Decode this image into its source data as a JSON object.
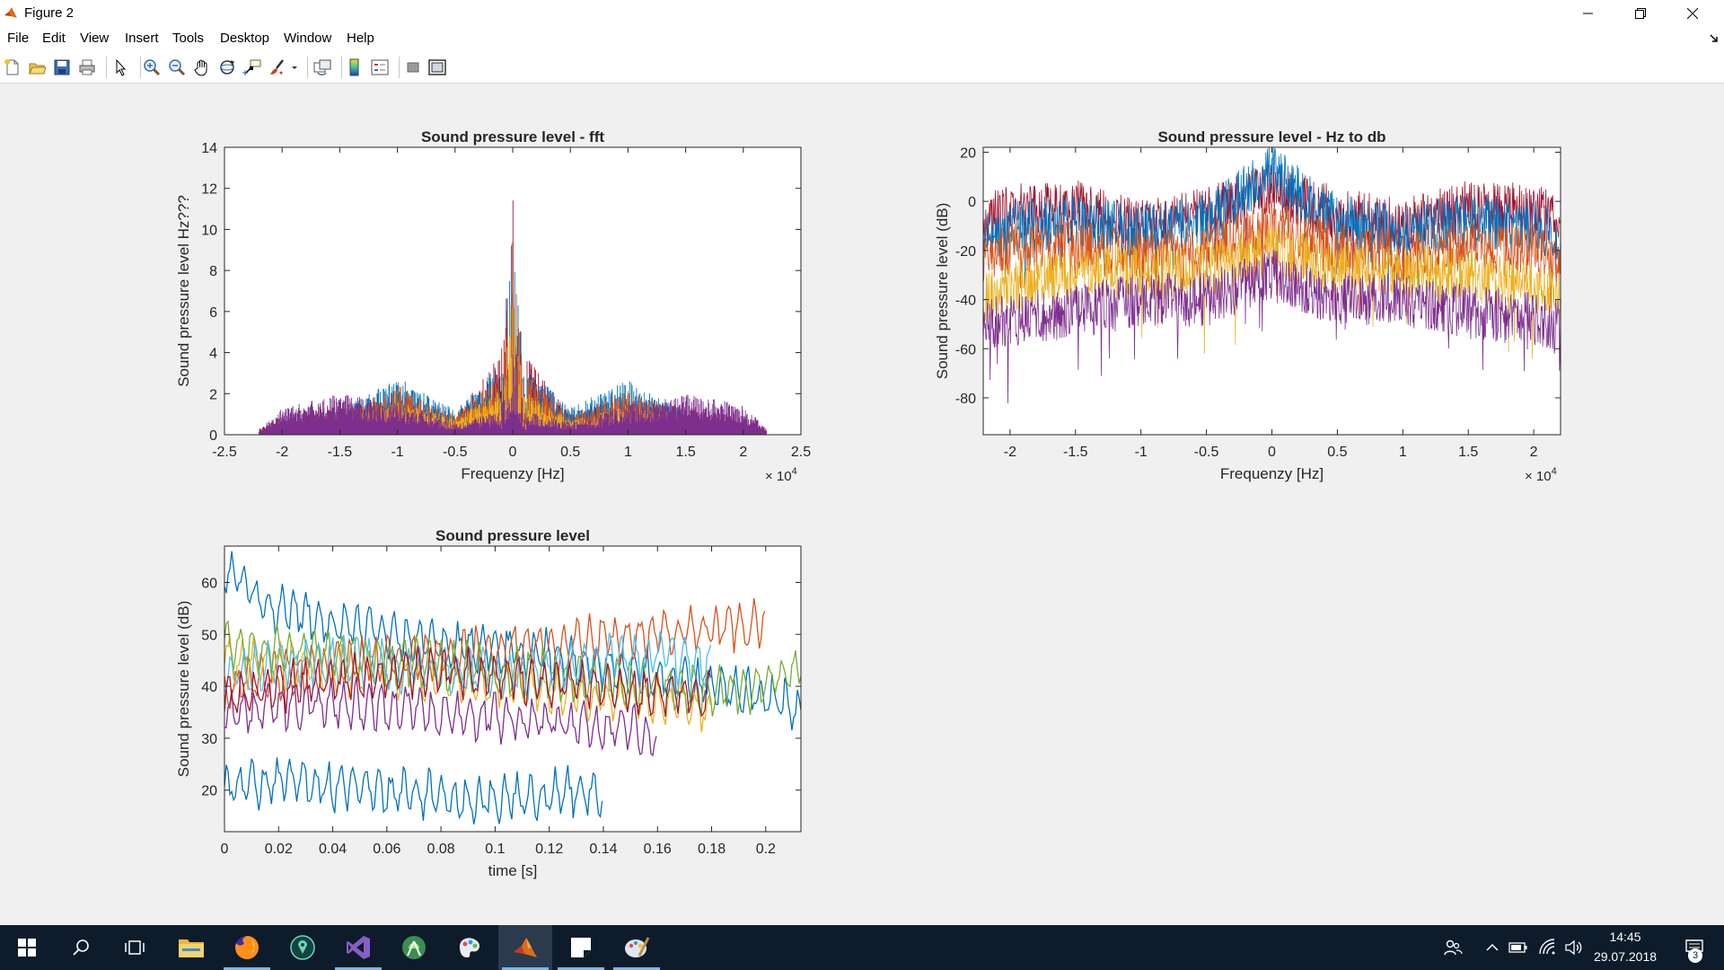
{
  "window": {
    "title": "Figure 2"
  },
  "menu": [
    "File",
    "Edit",
    "View",
    "Insert",
    "Tools",
    "Desktop",
    "Window",
    "Help"
  ],
  "toolbar": [
    "new-figure-icon",
    "open-file-icon",
    "save-icon",
    "print-icon",
    "select-arrow-icon",
    "zoom-in-icon",
    "zoom-out-icon",
    "pan-hand-icon",
    "rotate-3d-icon",
    "data-cursor-icon",
    "brush-icon",
    "brush-dropdown-icon",
    "link-plot-icon",
    "insert-colorbar-icon",
    "insert-legend-icon",
    "hide-plot-tools-icon",
    "show-plot-tools-icon"
  ],
  "colors": {
    "series": [
      "#0072bd",
      "#d95319",
      "#edb120",
      "#7e2f8e",
      "#77ac30",
      "#4dbeee",
      "#a2142f"
    ]
  },
  "axes": [
    {
      "id": "fft",
      "title": "Sound pressure level - fft",
      "xlabel": "Frequenzy [Hz]",
      "ylabel": "Sound pressure level Hz???",
      "xticks": [
        "-2.5",
        "-2",
        "-1.5",
        "-1",
        "-0.5",
        "0",
        "0.5",
        "1",
        "1.5",
        "2",
        "2.5"
      ],
      "yticks": [
        "0",
        "2",
        "4",
        "6",
        "8",
        "10",
        "12",
        "14"
      ],
      "exponent_base": "× 10",
      "exponent_power": "4"
    },
    {
      "id": "db",
      "title": "Sound pressure level - Hz to db",
      "xlabel": "Frequenzy [Hz]",
      "ylabel": "Sound pressure level (dB)",
      "xticks": [
        "-2",
        "-1.5",
        "-1",
        "-0.5",
        "0",
        "0.5",
        "1",
        "1.5",
        "2"
      ],
      "yticks": [
        "20",
        "0",
        "-20",
        "-40",
        "-60",
        "-80"
      ],
      "exponent_base": "× 10",
      "exponent_power": "4"
    },
    {
      "id": "time",
      "title": "Sound pressure level",
      "xlabel": "time [s]",
      "ylabel": "Sound pressure level (dB)",
      "xticks": [
        "0",
        "0.02",
        "0.04",
        "0.06",
        "0.08",
        "0.1",
        "0.12",
        "0.14",
        "0.16",
        "0.18",
        "0.2"
      ],
      "yticks": [
        "60",
        "50",
        "40",
        "30",
        "20"
      ]
    }
  ],
  "chart_data": [
    {
      "type": "line",
      "title": "Sound pressure level - fft",
      "xlabel": "Frequenzy [Hz]",
      "ylabel": "Sound pressure level Hz???",
      "xlim": [
        -25000,
        25000
      ],
      "ylim": [
        0,
        14
      ],
      "x_exponent": 4,
      "x": [
        -22000,
        -20000,
        -15000,
        -10000,
        -5000,
        -1000,
        0,
        1000,
        5000,
        10000,
        15000,
        20000,
        22000
      ],
      "series": [
        {
          "values": [
            0.3,
            0.9,
            1.5,
            1.8,
            0.9,
            4.0,
            12.3,
            4.0,
            1.0,
            1.9,
            1.4,
            0.9,
            0.3
          ]
        },
        {
          "values": [
            0.2,
            0.7,
            1.2,
            2.8,
            1.2,
            3.5,
            11.5,
            3.5,
            1.3,
            2.7,
            1.1,
            0.6,
            0.2
          ]
        },
        {
          "values": [
            0.2,
            0.6,
            1.1,
            2.4,
            1.0,
            3.0,
            10.0,
            3.0,
            1.0,
            2.2,
            0.9,
            0.5,
            0.2
          ]
        },
        {
          "values": [
            0.1,
            0.4,
            0.8,
            1.6,
            0.8,
            2.2,
            8.0,
            2.2,
            0.7,
            1.5,
            0.7,
            0.4,
            0.1
          ]
        },
        {
          "values": [
            0.2,
            1.3,
            2.0,
            1.6,
            0.6,
            1.2,
            5.5,
            1.2,
            0.6,
            1.5,
            2.0,
            1.5,
            0.3
          ]
        }
      ]
    },
    {
      "type": "line",
      "title": "Sound pressure level - Hz to db",
      "xlabel": "Frequenzy [Hz]",
      "ylabel": "Sound pressure level (dB)",
      "xlim": [
        -22050,
        22050
      ],
      "ylim": [
        -95,
        22
      ],
      "x_exponent": 4,
      "x": [
        -22050,
        -20000,
        -15000,
        -10000,
        -5000,
        0,
        5000,
        10000,
        15000,
        20000,
        22050
      ],
      "series": [
        {
          "values": [
            -8,
            -4,
            -2,
            -10,
            -5,
            5,
            -5,
            -10,
            -2,
            -4,
            -8
          ]
        },
        {
          "values": [
            -15,
            -10,
            -8,
            -12,
            -8,
            12,
            -8,
            -12,
            -8,
            -10,
            -15
          ]
        },
        {
          "values": [
            -25,
            -20,
            -18,
            -22,
            -20,
            -10,
            -20,
            -22,
            -18,
            -20,
            -25
          ]
        },
        {
          "values": [
            -40,
            -35,
            -30,
            -28,
            -28,
            -20,
            -28,
            -28,
            -30,
            -35,
            -40
          ]
        },
        {
          "values": [
            -50,
            -48,
            -45,
            -40,
            -40,
            -30,
            -40,
            -40,
            -45,
            -48,
            -50
          ]
        }
      ]
    },
    {
      "type": "line",
      "title": "Sound pressure level",
      "xlabel": "time [s]",
      "ylabel": "Sound pressure level (dB)",
      "xlim": [
        0,
        0.213
      ],
      "ylim": [
        12,
        67
      ],
      "x": [
        0,
        0.02,
        0.04,
        0.06,
        0.08,
        0.1,
        0.12,
        0.14,
        0.16,
        0.18,
        0.2,
        0.213
      ],
      "series": [
        {
          "values": [
            62,
            55,
            52,
            50,
            48,
            47,
            46,
            44,
            42,
            40,
            38,
            36
          ]
        },
        {
          "values": [
            40,
            42,
            44,
            45,
            46,
            47,
            48,
            49,
            50,
            51,
            52,
            null
          ]
        },
        {
          "values": [
            45,
            44,
            43,
            42,
            41,
            40,
            39,
            38,
            37,
            35,
            null,
            null
          ]
        },
        {
          "values": [
            35,
            36,
            37,
            36,
            35,
            34,
            33,
            32,
            31,
            null,
            null,
            null
          ]
        },
        {
          "values": [
            48,
            47,
            46,
            45,
            44,
            43,
            42,
            41,
            40,
            39,
            40,
            44
          ]
        },
        {
          "values": [
            42,
            44,
            45,
            44,
            43,
            42,
            43,
            45,
            46,
            44,
            null,
            null
          ]
        },
        {
          "values": [
            38,
            40,
            41,
            42,
            43,
            42,
            41,
            40,
            39,
            38,
            null,
            null
          ]
        },
        {
          "values": [
            20,
            22,
            21,
            20,
            19,
            18,
            19,
            20,
            null,
            null,
            null,
            null
          ]
        }
      ]
    }
  ],
  "taskbar": [
    "windows-start-icon",
    "search-icon",
    "task-view-icon",
    "file-explorer-icon",
    "firefox-icon",
    "app-icon",
    "visual-studio-icon",
    "android-studio-icon",
    "paint-3d-icon",
    "matlab-icon",
    "sticky-notes-icon",
    "paint-icon"
  ],
  "clock": {
    "time": "14:45",
    "date": "29.07.2018"
  },
  "notifications": {
    "count": "3"
  }
}
